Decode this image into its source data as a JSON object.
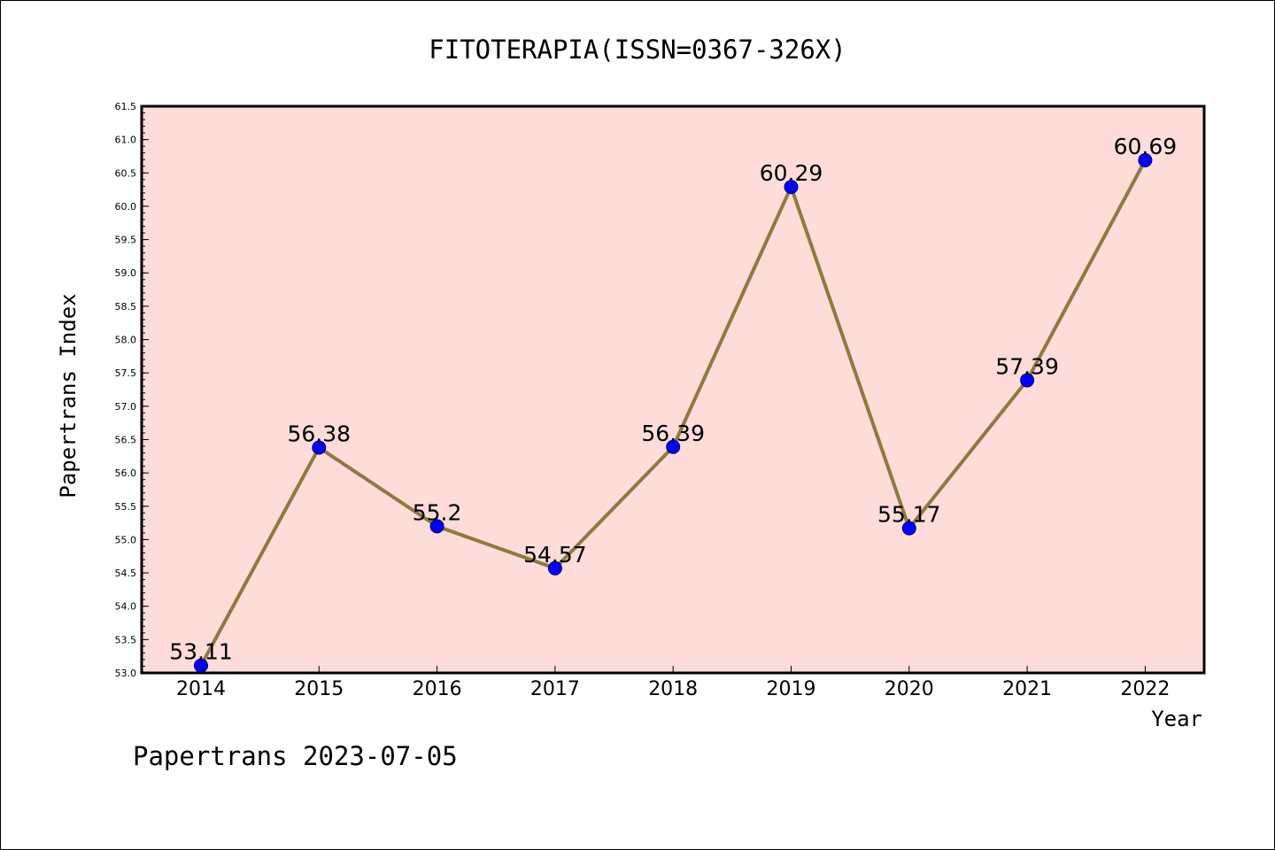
{
  "footer": "Papertrans 2023-07-05",
  "colors": {
    "plot_background": "#fddcda",
    "line": "#8c7b3c",
    "marker_fill": "#0000ff",
    "marker_stroke": "#000066",
    "frame": "#000000"
  },
  "chart_data": {
    "type": "line",
    "title": "FITOTERAPIA(ISSN=0367-326X)",
    "xlabel": "Year",
    "ylabel": "Papertrans Index",
    "categories": [
      "2014",
      "2015",
      "2016",
      "2017",
      "2018",
      "2019",
      "2020",
      "2021",
      "2022"
    ],
    "series": [
      {
        "values": [
          53.11,
          56.38,
          55.2,
          54.57,
          56.39,
          60.29,
          55.17,
          57.39,
          60.69
        ],
        "labels": [
          "53.11",
          "56.38",
          "55.2",
          "54.57",
          "56.39",
          "60.29",
          "55.17",
          "57.39",
          "60.69"
        ]
      }
    ],
    "ylim": [
      53.0,
      61.5
    ],
    "yticks": [
      "53.0",
      "53.5",
      "54.0",
      "54.5",
      "55.0",
      "55.5",
      "56.0",
      "56.5",
      "57.0",
      "57.5",
      "58.0",
      "58.5",
      "59.0",
      "59.5",
      "60.0",
      "60.5",
      "61.0",
      "61.5"
    ],
    "grid": false,
    "legend": "none"
  }
}
